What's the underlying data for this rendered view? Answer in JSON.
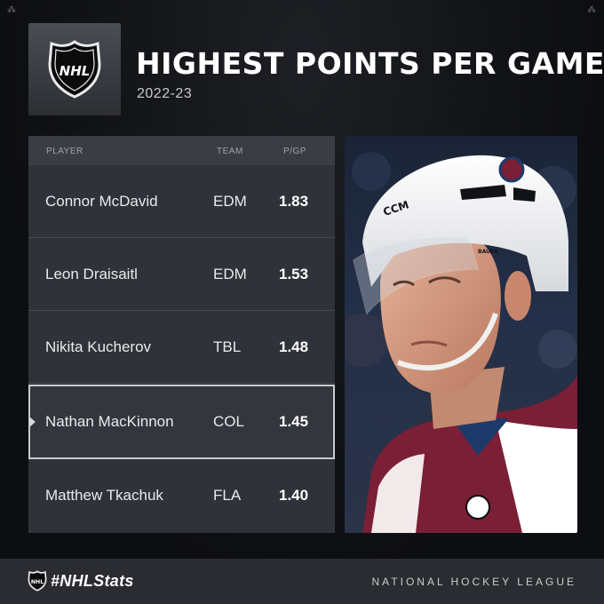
{
  "header": {
    "title": "HIGHEST POINTS PER GAME",
    "season": "2022-23",
    "logo_text": "NHL"
  },
  "table": {
    "columns": [
      "PLAYER",
      "TEAM",
      "P/GP"
    ],
    "rows": [
      {
        "player": "Connor McDavid",
        "team": "EDM",
        "pgp": "1.83"
      },
      {
        "player": "Leon Draisaitl",
        "team": "EDM",
        "pgp": "1.53"
      },
      {
        "player": "Nikita Kucherov",
        "team": "TBL",
        "pgp": "1.48"
      },
      {
        "player": "Nathan MacKinnon",
        "team": "COL",
        "pgp": "1.45",
        "highlighted": true
      },
      {
        "player": "Matthew Tkachuk",
        "team": "FLA",
        "pgp": "1.40"
      }
    ]
  },
  "photo": {
    "helmet_brand": "CCM",
    "visor_brand": "BAUER"
  },
  "footer": {
    "hashtag": "#NHLStats",
    "league_name": "NATIONAL HOCKEY LEAGUE",
    "logo_text": "NHL"
  },
  "colors": {
    "background": "#0d0e11",
    "table": "#2f3238",
    "table_header": "#3a3d44",
    "highlight_border": "#c9cbcf",
    "avalanche_burgundy": "#7a1f36"
  }
}
